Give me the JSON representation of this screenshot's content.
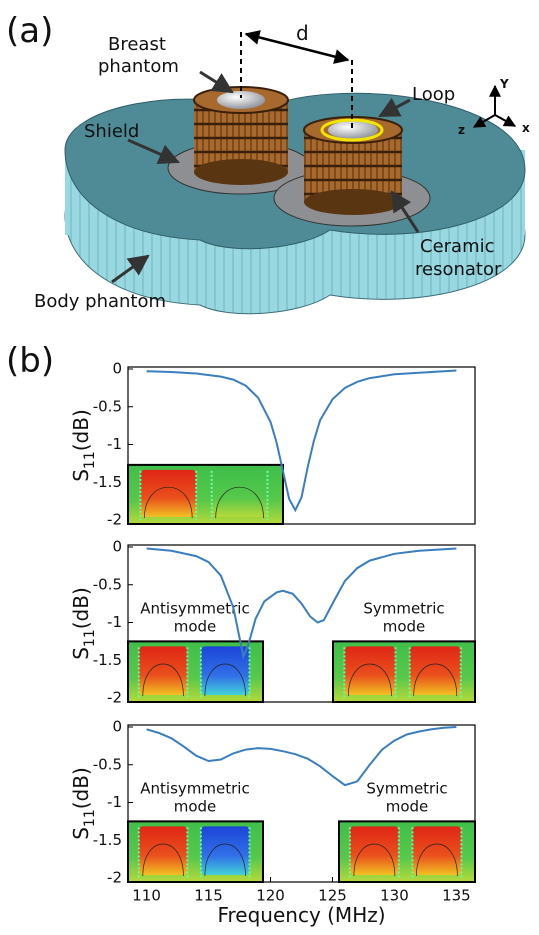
{
  "figure_a": {
    "panel": "(a)",
    "breast_phantom": [
      "Breast",
      "phantom"
    ],
    "distance": "d",
    "loop": "Loop",
    "shield": "Shield",
    "ceramic_resonator": [
      "Ceramic",
      "resonator"
    ],
    "body_phantom": "Body phantom",
    "axes": [
      "Y",
      "z",
      "x"
    ]
  },
  "panel_b": "(b)",
  "chart_data": [
    {
      "type": "line",
      "color": "#3a7ebf",
      "ylabel": {
        "main": "S",
        "sub": "11",
        "unit": "(dB)"
      },
      "x": [
        110,
        112,
        114,
        116,
        117,
        118,
        119,
        120,
        120.5,
        121,
        121.5,
        122,
        122.5,
        123,
        123.5,
        124,
        125,
        126,
        127,
        128,
        130,
        132,
        135
      ],
      "values": [
        -0.03,
        -0.04,
        -0.06,
        -0.1,
        -0.14,
        -0.22,
        -0.38,
        -0.7,
        -0.98,
        -1.35,
        -1.72,
        -1.87,
        -1.7,
        -1.3,
        -0.95,
        -0.68,
        -0.4,
        -0.25,
        -0.17,
        -0.12,
        -0.07,
        -0.05,
        -0.02
      ],
      "xlim": [
        108.5,
        136.5
      ],
      "ylim": [
        -2,
        0
      ],
      "yticks": [
        0,
        -0.5,
        -1,
        -1.5,
        -2
      ]
    },
    {
      "type": "line",
      "color": "#3a7ebf",
      "ylabel": {
        "main": "S",
        "sub": "11",
        "unit": "(dB)"
      },
      "x": [
        110,
        112,
        114,
        115,
        116,
        117,
        117.5,
        117.8,
        118.2,
        118.8,
        119.5,
        120.5,
        121,
        121.8,
        122.5,
        123.2,
        123.8,
        124.3,
        125,
        126,
        127,
        128,
        130,
        132,
        135
      ],
      "values": [
        -0.02,
        -0.05,
        -0.12,
        -0.2,
        -0.38,
        -0.8,
        -1.2,
        -1.45,
        -1.3,
        -0.95,
        -0.72,
        -0.6,
        -0.58,
        -0.62,
        -0.75,
        -0.92,
        -1.0,
        -0.97,
        -0.75,
        -0.45,
        -0.28,
        -0.18,
        -0.09,
        -0.05,
        -0.02
      ],
      "xlim": [
        108.5,
        136.5
      ],
      "ylim": [
        -2,
        0
      ],
      "yticks": [
        0,
        -0.5,
        -1,
        -1.5,
        -2
      ],
      "annotations": [
        [
          "Antisymmetric",
          "mode"
        ],
        [
          "Symmetric",
          "mode"
        ]
      ]
    },
    {
      "type": "line",
      "color": "#3a7ebf",
      "ylabel": {
        "main": "S",
        "sub": "11",
        "unit": "(dB)"
      },
      "xlabel": "Frequency (MHz)",
      "x": [
        110,
        111,
        112,
        113,
        114,
        115,
        116,
        117,
        118,
        119,
        120,
        121,
        122,
        123,
        124,
        125,
        126,
        127,
        128,
        129,
        130,
        131,
        132,
        133,
        134,
        135
      ],
      "values": [
        -0.03,
        -0.08,
        -0.15,
        -0.26,
        -0.38,
        -0.45,
        -0.43,
        -0.35,
        -0.3,
        -0.28,
        -0.29,
        -0.32,
        -0.36,
        -0.42,
        -0.52,
        -0.65,
        -0.77,
        -0.72,
        -0.5,
        -0.3,
        -0.18,
        -0.1,
        -0.06,
        -0.03,
        -0.01,
        0
      ],
      "xlim": [
        108.5,
        136.5
      ],
      "ylim": [
        -2,
        0
      ],
      "yticks": [
        0,
        -0.5,
        -1,
        -1.5,
        -2
      ],
      "xticks": [
        110,
        115,
        120,
        125,
        130,
        135
      ],
      "annotations": [
        [
          "Antisymmetric",
          "mode"
        ],
        [
          "Symmetric",
          "mode"
        ]
      ]
    }
  ]
}
